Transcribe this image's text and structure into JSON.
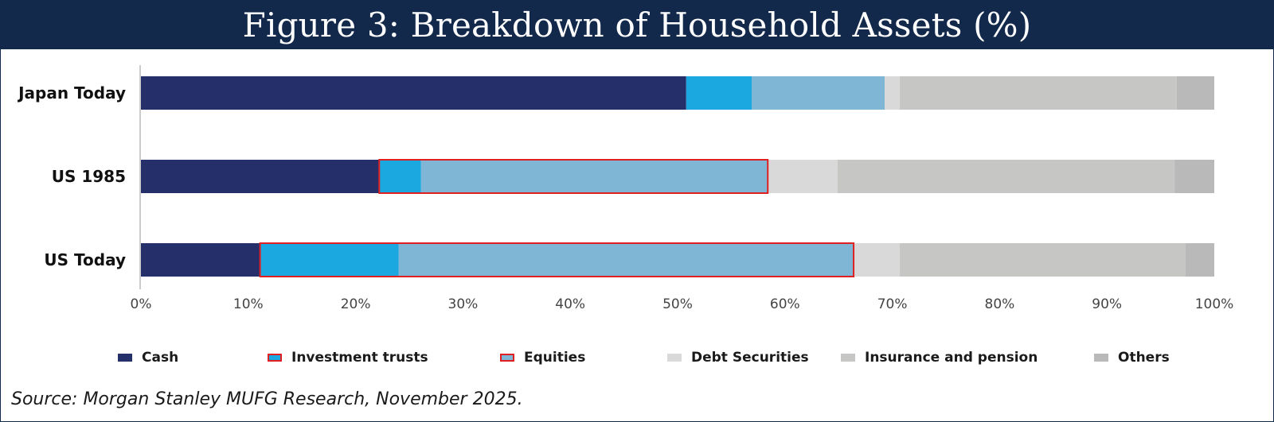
{
  "header": {
    "title": "Figure 3: Breakdown of Household Assets (%)"
  },
  "source": "Source: Morgan Stanley MUFG Research, November 2025.",
  "chart_data": {
    "type": "bar",
    "orientation": "horizontal",
    "stacked": true,
    "title": "Figure 3: Breakdown of Household Assets (%)",
    "categories": [
      "Japan Today",
      "US 1985",
      "US Today"
    ],
    "x_ticks": [
      "0%",
      "10%",
      "20%",
      "30%",
      "40%",
      "50%",
      "60%",
      "70%",
      "80%",
      "90%",
      "100%"
    ],
    "xlim": [
      0,
      100
    ],
    "grid": false,
    "legend_position": "bottom",
    "series": [
      {
        "name": "Cash",
        "color": "#25306b",
        "values": [
          50.8,
          22.2,
          11.1
        ]
      },
      {
        "name": "Investment trusts",
        "color": "#1ba7df",
        "values": [
          6.1,
          3.9,
          12.9
        ]
      },
      {
        "name": "Equities",
        "color": "#7fb6d6",
        "values": [
          12.4,
          32.3,
          42.4
        ]
      },
      {
        "name": "Debt Securities",
        "color": "#d9d9d9",
        "values": [
          1.4,
          6.5,
          4.3
        ]
      },
      {
        "name": "Insurance and pension",
        "color": "#c6c6c4",
        "values": [
          25.8,
          31.4,
          26.6
        ]
      },
      {
        "name": "Others",
        "color": "#b9b9b9",
        "values": [
          3.5,
          3.7,
          2.7
        ]
      }
    ],
    "highlight": {
      "color": "#e02020",
      "series": [
        "Investment trusts",
        "Equities"
      ],
      "categories": [
        "US 1985",
        "US Today"
      ]
    }
  }
}
